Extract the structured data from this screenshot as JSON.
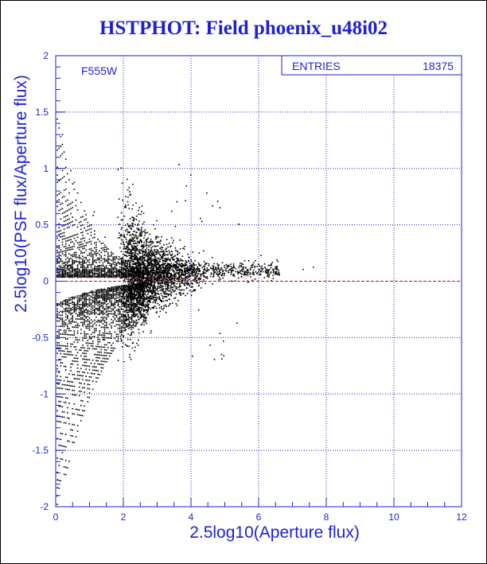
{
  "title": "HSTPHOT: Field phoenix_u48i02",
  "colors": {
    "text": "#1f1fd6",
    "axis": "#1f1fd6",
    "grid": "#1f1fd6",
    "points": "#000000",
    "zero_line": "#d40000"
  },
  "stats_box": {
    "label": "ENTRIES",
    "value": "18375"
  },
  "chart_data": {
    "type": "scatter",
    "title": "HSTPHOT: Field phoenix_u48i02",
    "filter_label": "F555W",
    "xlabel": "2.5log10(Aperture flux)",
    "ylabel": "2.5log10(PSF flux/Aperture flux)",
    "xlim": [
      0,
      12
    ],
    "ylim": [
      -2,
      2
    ],
    "x_ticks": [
      0,
      2,
      4,
      6,
      8,
      10,
      12
    ],
    "y_ticks": [
      -2,
      -1.5,
      -1,
      -0.5,
      0,
      0.5,
      1,
      1.5,
      2
    ],
    "grid": true,
    "reference_line_y": 0,
    "entries": 18375,
    "points_note": "dense funnel of points converging toward y≈0.05 between x≈2 and x≈3.5; sparse tail to x≈7.5"
  }
}
